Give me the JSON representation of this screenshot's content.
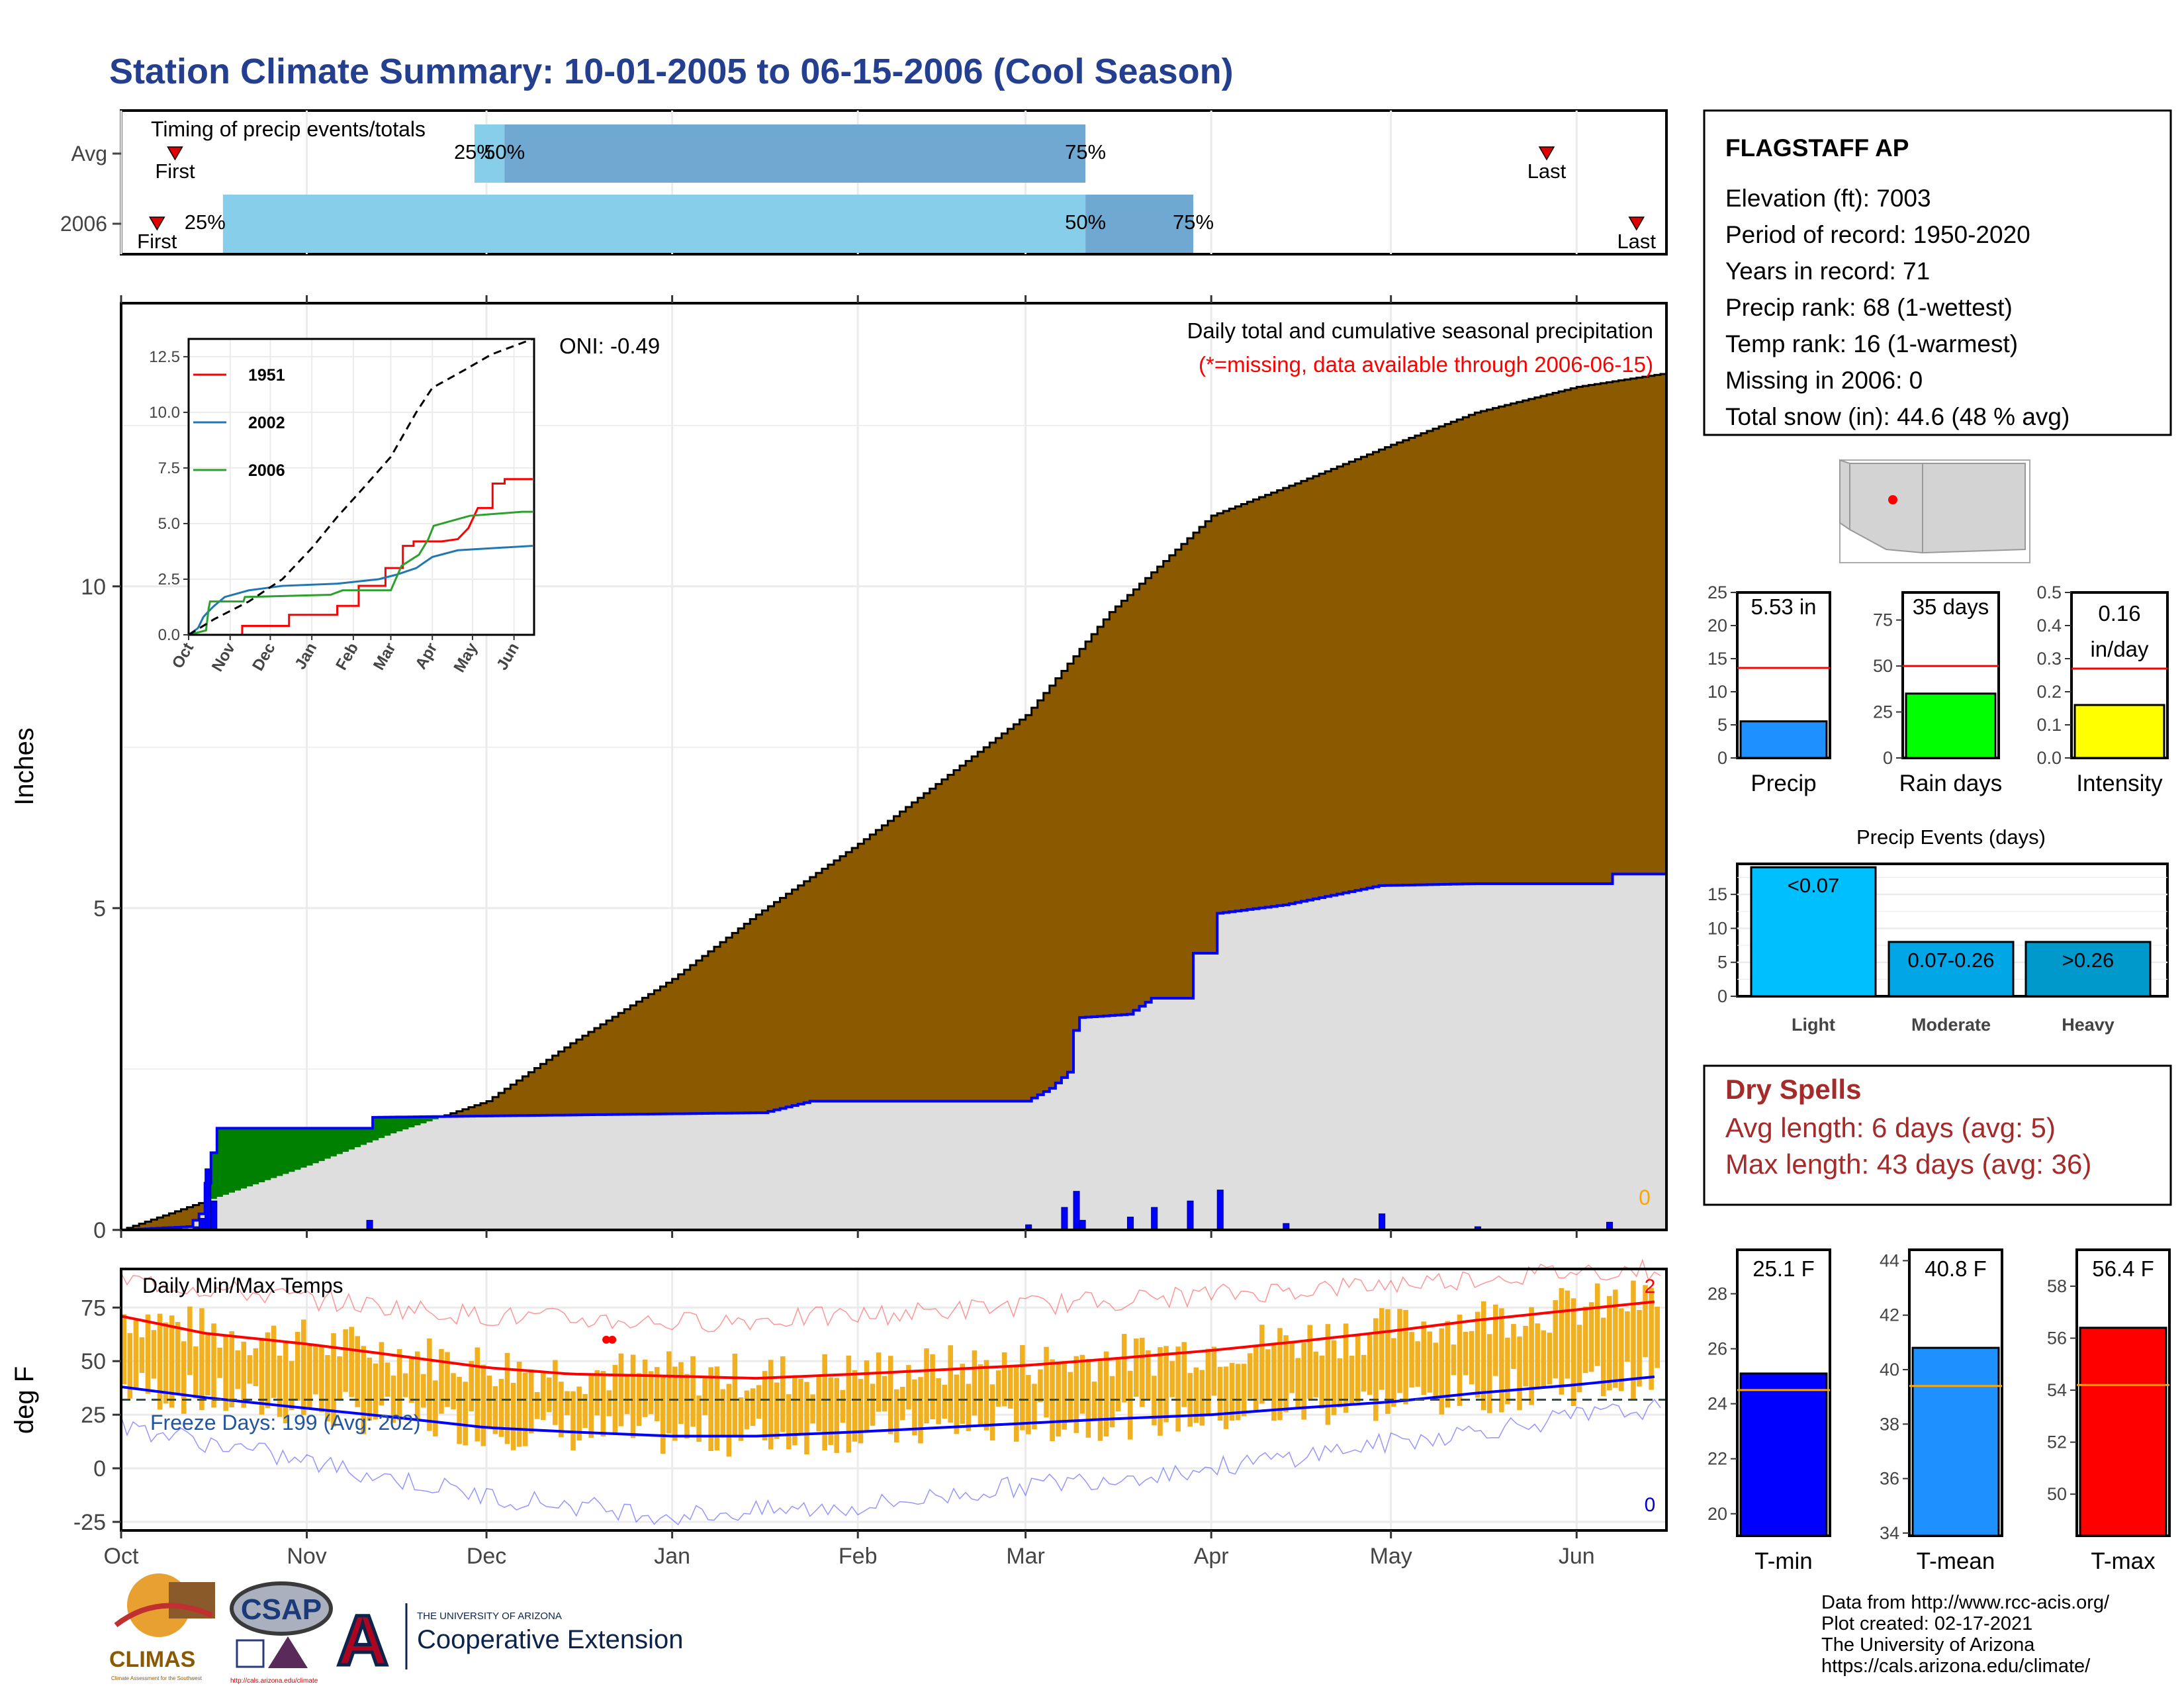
{
  "page": {
    "title": "Station Climate Summary: 10-01-2005 to 06-15-2006 (Cool Season)",
    "footer": [
      "Data from http://www.rcc-acis.org/",
      "Plot created: 02-17-2021",
      "The University of Arizona",
      "https://cals.arizona.edu/climate/"
    ],
    "logos": {
      "climas": "CLIMAS",
      "climas_sub": "Climate Assessment for the Southwest",
      "csap": "CSAP",
      "csap_url": "http://cals.arizona.edu/climate",
      "ua_letter": "A",
      "ua_top": "THE UNIVERSITY OF ARIZONA",
      "ua_bottom": "Cooperative Extension"
    }
  },
  "colors": {
    "title": "#243f8f",
    "cumulative_fill": "#8b5a00",
    "current_fill": "#dedede",
    "current_line": "#0000ff",
    "green_fill": "#008000",
    "tmax": "#ff0000",
    "tmin": "#0000ff",
    "bars": "#f0b020",
    "light_blue": "#87ceeb",
    "mid_blue": "#6fa8d0"
  },
  "station": {
    "name": "FLAGSTAFF AP",
    "lines": [
      "Elevation (ft): 7003",
      "Period of record: 1950-2020",
      "Years in record: 71",
      "Precip rank: 68 (1-wettest)",
      "Temp rank: 16 (1-warmest)",
      "Missing in 2006: 0",
      "Total snow (in): 44.6 (48 % avg)"
    ]
  },
  "chart_data": [
    {
      "id": "timing",
      "type": "bar",
      "title": "Timing of precip events/totals",
      "rows": [
        {
          "label": "Avg",
          "first": "10-10",
          "p25": "11-29",
          "p50": "12-04",
          "p75": "03-11",
          "last": "05-27",
          "label_first": "First",
          "label_last": "Last",
          "label_25": "25%",
          "label_50": "50%",
          "label_75": "75%"
        },
        {
          "label": "2006",
          "first": "10-07",
          "p25": "10-18",
          "p50": "03-11",
          "p75": "03-29",
          "last": "06-11",
          "label_first": "First",
          "label_last": "Last",
          "label_25": "25%",
          "label_50": "50%",
          "label_75": "75%"
        }
      ]
    },
    {
      "id": "precip",
      "type": "area",
      "title": "Daily total and cumulative seasonal precipitation",
      "subtitle": "(*=missing, data available through 2006-06-15)",
      "annotation": "ONI: -0.49",
      "zero_marker": "0",
      "ylabel": "Inches",
      "ylim": [
        0,
        14.4
      ],
      "yticks": [
        0,
        5,
        10
      ],
      "x_months": [
        "Oct",
        "Nov",
        "Dec",
        "Jan",
        "Feb",
        "Mar",
        "Apr",
        "May",
        "Jun"
      ],
      "avg_cumulative": [
        [
          "10-01",
          0.0
        ],
        [
          "10-15",
          0.45
        ],
        [
          "11-01",
          1.0
        ],
        [
          "11-15",
          1.5
        ],
        [
          "12-01",
          2.0
        ],
        [
          "12-15",
          2.9
        ],
        [
          "01-01",
          3.9
        ],
        [
          "01-15",
          4.9
        ],
        [
          "02-01",
          6.0
        ],
        [
          "02-15",
          7.0
        ],
        [
          "03-01",
          8.0
        ],
        [
          "03-15",
          9.6
        ],
        [
          "04-01",
          11.1
        ],
        [
          "04-15",
          11.6
        ],
        [
          "05-01",
          12.2
        ],
        [
          "05-15",
          12.7
        ],
        [
          "06-01",
          13.1
        ],
        [
          "06-15",
          13.3
        ]
      ],
      "current_cumulative": [
        [
          "10-01",
          0.0
        ],
        [
          "10-12",
          0.05
        ],
        [
          "10-14",
          0.25
        ],
        [
          "10-16",
          1.2
        ],
        [
          "10-17",
          1.58
        ],
        [
          "11-11",
          1.58
        ],
        [
          "11-12",
          1.75
        ],
        [
          "01-15",
          1.82
        ],
        [
          "01-16",
          1.82
        ],
        [
          "01-24",
          2.0
        ],
        [
          "03-01",
          2.0
        ],
        [
          "03-05",
          2.2
        ],
        [
          "03-08",
          2.45
        ],
        [
          "03-09",
          3.1
        ],
        [
          "03-10",
          3.3
        ],
        [
          "03-18",
          3.35
        ],
        [
          "03-22",
          3.6
        ],
        [
          "03-28",
          3.6
        ],
        [
          "03-29",
          4.3
        ],
        [
          "04-01",
          4.3
        ],
        [
          "04-02",
          4.92
        ],
        [
          "04-13",
          5.05
        ],
        [
          "04-29",
          5.35
        ],
        [
          "05-15",
          5.38
        ],
        [
          "06-06",
          5.38
        ],
        [
          "06-07",
          5.53
        ],
        [
          "06-15",
          5.53
        ]
      ],
      "daily_bars": [
        [
          "10-13",
          0.05
        ],
        [
          "10-14",
          0.18
        ],
        [
          "10-15",
          0.95
        ],
        [
          "10-16",
          0.45
        ],
        [
          "11-11",
          0.15
        ],
        [
          "03-01",
          0.08
        ],
        [
          "03-07",
          0.35
        ],
        [
          "03-09",
          0.6
        ],
        [
          "03-10",
          0.15
        ],
        [
          "03-18",
          0.2
        ],
        [
          "03-22",
          0.35
        ],
        [
          "03-28",
          0.45
        ],
        [
          "04-02",
          0.62
        ],
        [
          "04-13",
          0.1
        ],
        [
          "04-29",
          0.25
        ],
        [
          "05-15",
          0.05
        ],
        [
          "06-06",
          0.12
        ]
      ],
      "inset": {
        "type": "line",
        "ylim": [
          0,
          12.5
        ],
        "yticks": [
          "0.0",
          "2.5",
          "5.0",
          "7.5",
          "10.0",
          "12.5"
        ],
        "x_months": [
          "Oct",
          "Nov",
          "Dec",
          "Jan",
          "Feb",
          "Mar",
          "Apr",
          "May",
          "Jun"
        ],
        "series": [
          {
            "name": "1951",
            "color": "#ff0000",
            "points": [
              [
                "10-01",
                0.0
              ],
              [
                "11-10",
                0.0
              ],
              [
                "11-10",
                0.4
              ],
              [
                "12-15",
                0.4
              ],
              [
                "12-15",
                0.9
              ],
              [
                "01-20",
                0.9
              ],
              [
                "01-20",
                1.3
              ],
              [
                "02-05",
                1.3
              ],
              [
                "02-05",
                2.2
              ],
              [
                "02-25",
                2.2
              ],
              [
                "02-25",
                3.0
              ],
              [
                "03-10",
                3.0
              ],
              [
                "03-10",
                4.0
              ],
              [
                "03-18",
                4.0
              ],
              [
                "03-18",
                4.2
              ],
              [
                "04-08",
                4.2
              ],
              [
                "04-20",
                4.3
              ],
              [
                "04-28",
                4.8
              ],
              [
                "05-05",
                5.7
              ],
              [
                "05-16",
                5.7
              ],
              [
                "05-16",
                6.8
              ],
              [
                "05-25",
                6.8
              ],
              [
                "05-25",
                7.0
              ],
              [
                "06-15",
                7.0
              ]
            ]
          },
          {
            "name": "2002",
            "color": "#1f77b4",
            "points": [
              [
                "10-01",
                0.0
              ],
              [
                "10-08",
                0.3
              ],
              [
                "10-12",
                0.8
              ],
              [
                "10-15",
                1.0
              ],
              [
                "10-20",
                1.3
              ],
              [
                "10-28",
                1.7
              ],
              [
                "11-15",
                2.0
              ],
              [
                "12-10",
                2.2
              ],
              [
                "01-20",
                2.3
              ],
              [
                "02-20",
                2.5
              ],
              [
                "03-05",
                2.7
              ],
              [
                "03-20",
                3.0
              ],
              [
                "04-01",
                3.5
              ],
              [
                "04-20",
                3.8
              ],
              [
                "06-15",
                4.0
              ]
            ]
          },
          {
            "name": "2006",
            "color": "#2ca02c",
            "points": [
              [
                "10-01",
                0.0
              ],
              [
                "10-14",
                0.2
              ],
              [
                "10-16",
                1.2
              ],
              [
                "10-17",
                1.5
              ],
              [
                "11-11",
                1.5
              ],
              [
                "11-12",
                1.7
              ],
              [
                "01-15",
                1.8
              ],
              [
                "01-24",
                2.0
              ],
              [
                "03-01",
                2.0
              ],
              [
                "03-09",
                3.1
              ],
              [
                "03-22",
                3.6
              ],
              [
                "03-29",
                4.3
              ],
              [
                "04-02",
                4.9
              ],
              [
                "04-29",
                5.35
              ],
              [
                "06-07",
                5.53
              ],
              [
                "06-15",
                5.53
              ]
            ]
          },
          {
            "name": "",
            "color": "#000000",
            "dashed": true,
            "points": [
              [
                "10-01",
                0.0
              ],
              [
                "10-20",
                0.7
              ],
              [
                "11-15",
                1.5
              ],
              [
                "12-10",
                2.5
              ],
              [
                "01-01",
                3.9
              ],
              [
                "01-20",
                5.3
              ],
              [
                "02-10",
                6.7
              ],
              [
                "03-01",
                8.0
              ],
              [
                "03-20",
                10.0
              ],
              [
                "04-01",
                11.1
              ],
              [
                "04-25",
                11.9
              ],
              [
                "05-15",
                12.6
              ],
              [
                "06-15",
                13.3
              ]
            ]
          }
        ]
      }
    },
    {
      "id": "temps",
      "type": "line",
      "title": "Daily Min/Max Temps",
      "annotation": "Freeze Days: 199 (Avg: 202)",
      "ylabel": "deg F",
      "ylim": [
        -29,
        93
      ],
      "yticks": [
        -25,
        0,
        25,
        50,
        75
      ],
      "freeze_line": 32,
      "record_high_count": "2",
      "record_low_count": "0",
      "x_months": [
        "Oct",
        "Nov",
        "Dec",
        "Jan",
        "Feb",
        "Mar",
        "Apr",
        "May",
        "Jun"
      ],
      "avg_tmax": [
        [
          "10-01",
          71
        ],
        [
          "10-15",
          63
        ],
        [
          "11-01",
          58
        ],
        [
          "11-15",
          53
        ],
        [
          "12-01",
          47
        ],
        [
          "12-15",
          44
        ],
        [
          "01-01",
          43
        ],
        [
          "01-15",
          42
        ],
        [
          "02-01",
          44
        ],
        [
          "02-15",
          46
        ],
        [
          "03-01",
          48
        ],
        [
          "03-15",
          51
        ],
        [
          "04-01",
          55
        ],
        [
          "04-15",
          59
        ],
        [
          "05-01",
          64
        ],
        [
          "05-15",
          69
        ],
        [
          "06-01",
          74
        ],
        [
          "06-15",
          78
        ]
      ],
      "avg_tmin": [
        [
          "10-01",
          38
        ],
        [
          "10-15",
          33
        ],
        [
          "11-01",
          28
        ],
        [
          "11-15",
          24
        ],
        [
          "12-01",
          19
        ],
        [
          "12-15",
          17
        ],
        [
          "01-01",
          15
        ],
        [
          "01-15",
          15
        ],
        [
          "02-01",
          17
        ],
        [
          "02-15",
          19
        ],
        [
          "03-01",
          21
        ],
        [
          "03-15",
          23
        ],
        [
          "04-01",
          25
        ],
        [
          "04-15",
          28
        ],
        [
          "05-01",
          31
        ],
        [
          "05-15",
          35
        ],
        [
          "06-01",
          39
        ],
        [
          "06-15",
          43
        ]
      ],
      "record_high": [
        [
          "10-01",
          88
        ],
        [
          "11-01",
          79
        ],
        [
          "12-01",
          71
        ],
        [
          "01-01",
          68
        ],
        [
          "02-01",
          71
        ],
        [
          "03-01",
          76
        ],
        [
          "04-01",
          81
        ],
        [
          "05-01",
          86
        ],
        [
          "06-01",
          92
        ],
        [
          "06-15",
          93
        ]
      ],
      "record_low": [
        [
          "10-01",
          20
        ],
        [
          "11-01",
          3
        ],
        [
          "12-01",
          -13
        ],
        [
          "01-01",
          -22
        ],
        [
          "02-01",
          -18
        ],
        [
          "03-01",
          -8
        ],
        [
          "04-01",
          0
        ],
        [
          "05-01",
          12
        ],
        [
          "06-01",
          24
        ],
        [
          "06-15",
          28
        ]
      ]
    },
    {
      "id": "totals",
      "type": "bar",
      "categories": [
        "Precip",
        "Rain days",
        "Intensity"
      ],
      "values": [
        5.53,
        35,
        0.16
      ],
      "averages": [
        13.6,
        50,
        0.27
      ],
      "labels": [
        "5.53 in",
        "35 days",
        "0.16 in/day"
      ],
      "colors": [
        "#1e90ff",
        "#00ff00",
        "#ffff00"
      ],
      "yticks": [
        [
          "0",
          "5",
          "10",
          "15",
          "20",
          "25"
        ],
        [
          "0",
          "25",
          "50",
          "75"
        ],
        [
          "0.0",
          "0.1",
          "0.2",
          "0.3",
          "0.4",
          "0.5"
        ]
      ],
      "ylims": [
        [
          0,
          25
        ],
        [
          0,
          90
        ],
        [
          0,
          0.5
        ]
      ]
    },
    {
      "id": "events",
      "type": "bar",
      "title": "Precip Events (days)",
      "categories": [
        "Light",
        "Moderate",
        "Heavy"
      ],
      "bar_labels": [
        "<0.07",
        "0.07-0.26",
        ">0.26"
      ],
      "values": [
        19,
        8,
        8
      ],
      "colors": [
        "#00bfff",
        "#00a6e6",
        "#0099cc"
      ],
      "ylim": [
        0,
        19.5
      ],
      "yticks": [
        0,
        5,
        10,
        15
      ]
    },
    {
      "id": "temp_bars",
      "type": "bar",
      "categories": [
        "T-min",
        "T-mean",
        "T-max"
      ],
      "values": [
        25.1,
        40.8,
        56.4
      ],
      "averages": [
        24.5,
        39.4,
        54.2
      ],
      "labels": [
        "25.1 F",
        "40.8 F",
        "56.4 F"
      ],
      "colors": [
        "#0000ff",
        "#1e90ff",
        "#ff0000"
      ],
      "avg_color": "#ffa500",
      "ylims": [
        [
          19.2,
          29.6
        ],
        [
          33.9,
          44.4
        ],
        [
          48.4,
          59.4
        ]
      ],
      "yticks": [
        [
          "20",
          "22",
          "24",
          "26",
          "28"
        ],
        [
          "34",
          "36",
          "38",
          "40",
          "42",
          "44"
        ],
        [
          "50",
          "52",
          "54",
          "56",
          "58"
        ]
      ]
    }
  ],
  "dry_spells": {
    "title": "Dry Spells",
    "lines": [
      "Avg length: 6 days (avg: 5)",
      "Max length: 43 days (avg: 36)"
    ]
  }
}
